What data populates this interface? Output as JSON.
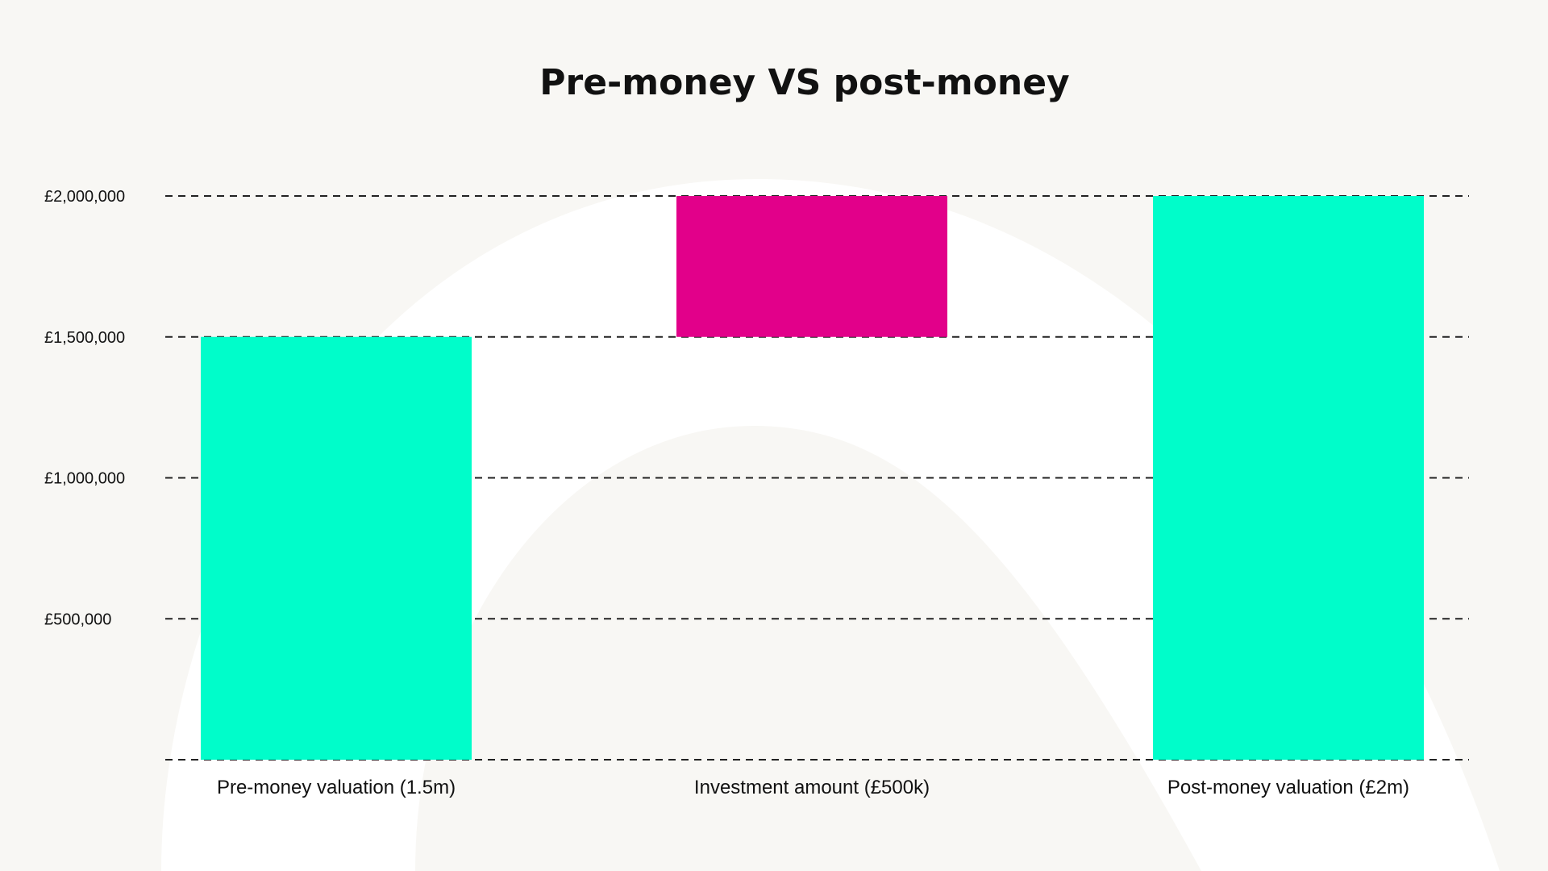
{
  "chart_data": {
    "type": "bar",
    "subtype": "waterfall",
    "title": "Pre-money VS post-money",
    "xlabel": "",
    "ylabel": "",
    "categories": [
      "Pre-money valuation (1.5m)",
      "Investment amount (£500k)",
      "Post-money valuation (£2m)"
    ],
    "bars": [
      {
        "start": 0,
        "end": 1500000,
        "color": "#00fdca"
      },
      {
        "start": 1500000,
        "end": 2000000,
        "color": "#e2008a"
      },
      {
        "start": 0,
        "end": 2000000,
        "color": "#00fdca"
      }
    ],
    "values": [
      1500000,
      500000,
      2000000
    ],
    "ylim": [
      0,
      2000000
    ],
    "yticks": [
      500000,
      1000000,
      1500000,
      2000000
    ],
    "ytick_labels": [
      "£500,000",
      "£1,000,000",
      "£1,500,000",
      "£2,000,000"
    ],
    "grid": true,
    "grid_style": "dashed",
    "legend": "none"
  },
  "colors": {
    "background": "#f8f7f4",
    "decor_arc": "#ffffff",
    "text": "#111111"
  }
}
